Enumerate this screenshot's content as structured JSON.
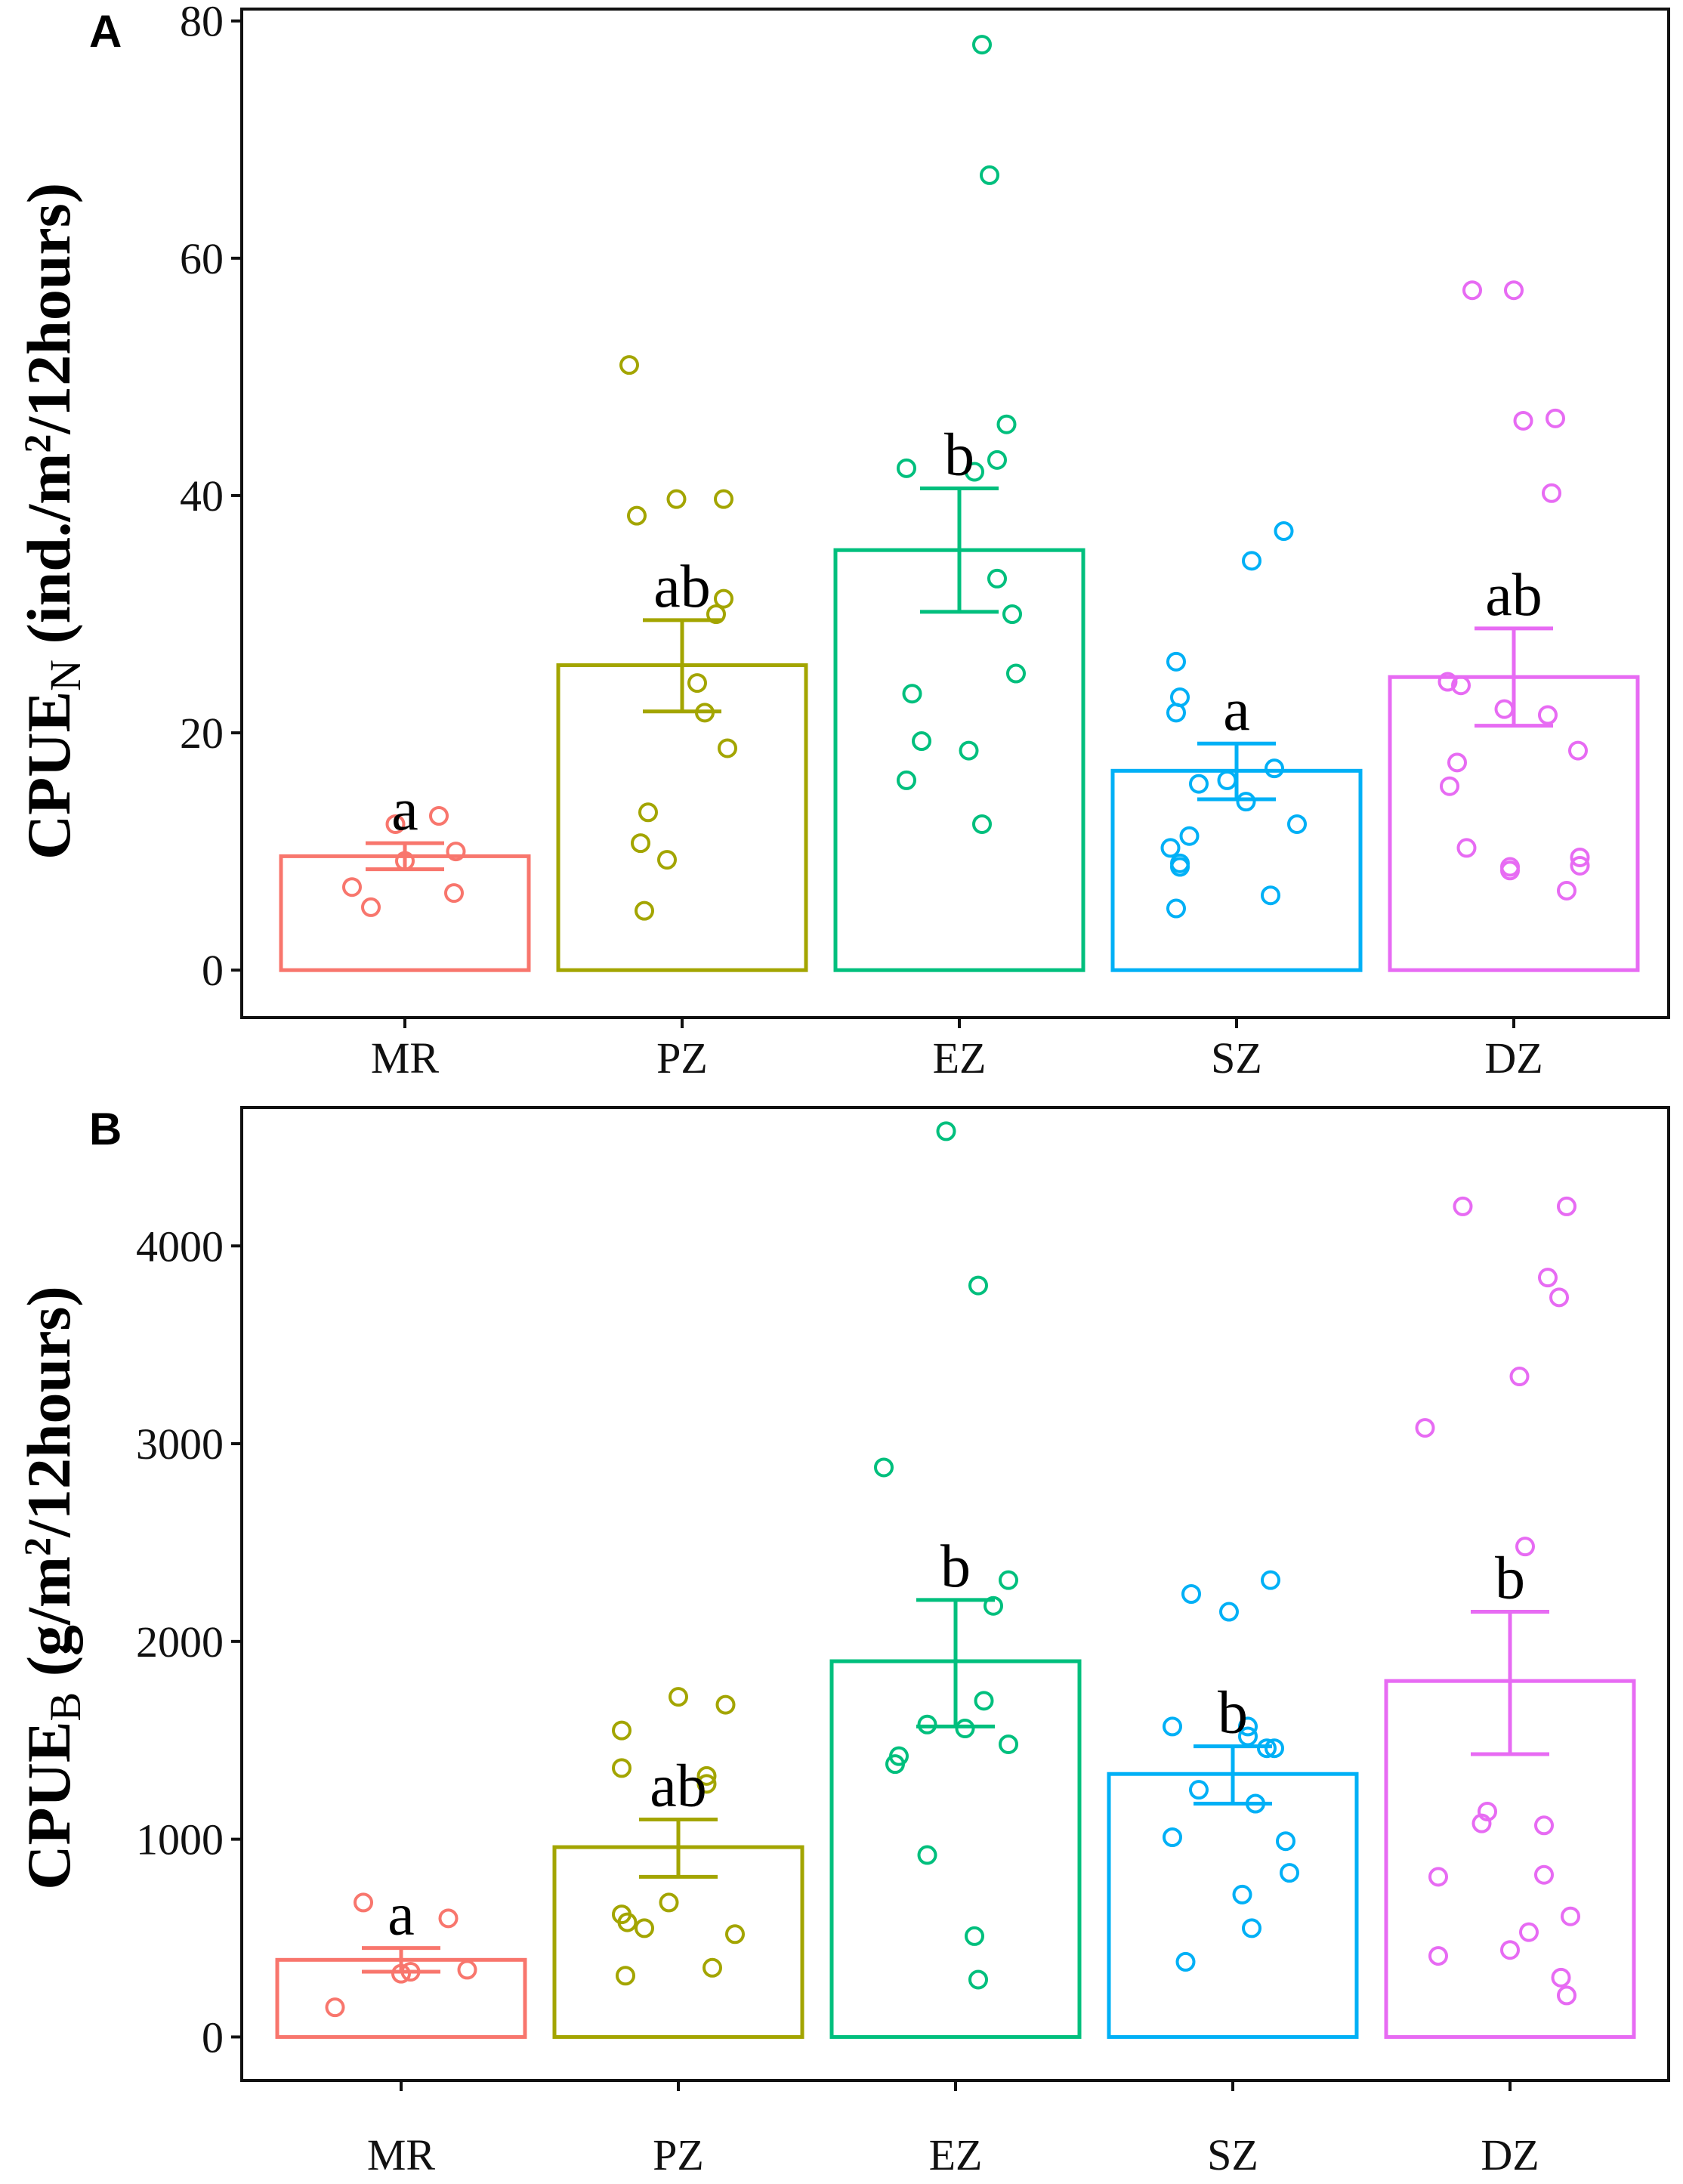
{
  "chart_data": [
    {
      "panel": "A",
      "type": "bar",
      "categories": [
        "MR",
        "PZ",
        "EZ",
        "SZ",
        "DZ"
      ],
      "colors": [
        "#F8766D",
        "#A3A500",
        "#00BF7D",
        "#00B0F6",
        "#E76BF3"
      ],
      "ylabel_main": "CPUE",
      "ylabel_sub": "N",
      "ylabel_tail": " (ind./m",
      "ylabel_sup": "2",
      "ylabel_end": "/12hours)",
      "ylim": [
        -4,
        81
      ],
      "yticks": [
        0,
        20,
        40,
        60,
        80
      ],
      "tick_labels": [
        "0",
        "20",
        "40",
        "60",
        "80"
      ],
      "means": [
        9.6,
        25.7,
        35.4,
        16.8,
        24.7
      ],
      "se_low": [
        8.5,
        21.8,
        30.2,
        14.4,
        20.6
      ],
      "se_high": [
        10.7,
        29.5,
        40.6,
        19.1,
        28.8
      ],
      "sig_letters": [
        "a",
        "ab",
        "b",
        "a",
        "ab"
      ],
      "points": [
        [
          [
            -0.28,
            7.0
          ],
          [
            -0.18,
            5.3
          ],
          [
            -0.05,
            12.3
          ],
          [
            0.0,
            9.2
          ],
          [
            0.18,
            13.0
          ],
          [
            0.27,
            10.0
          ],
          [
            0.26,
            6.5
          ]
        ],
        [
          [
            -0.28,
            51.0
          ],
          [
            -0.24,
            38.3
          ],
          [
            -0.03,
            39.7
          ],
          [
            0.22,
            39.7
          ],
          [
            0.22,
            31.3
          ],
          [
            0.18,
            30.0
          ],
          [
            0.08,
            24.2
          ],
          [
            0.12,
            21.7
          ],
          [
            0.24,
            18.7
          ],
          [
            -0.18,
            13.3
          ],
          [
            -0.22,
            10.7
          ],
          [
            -0.08,
            9.3
          ],
          [
            -0.2,
            5.0
          ]
        ],
        [
          [
            0.12,
            78.0
          ],
          [
            0.16,
            67.0
          ],
          [
            -0.28,
            42.3
          ],
          [
            0.08,
            42.0
          ],
          [
            0.25,
            46.0
          ],
          [
            0.2,
            43.0
          ],
          [
            0.2,
            33.0
          ],
          [
            0.28,
            30.0
          ],
          [
            0.3,
            25.0
          ],
          [
            -0.25,
            23.3
          ],
          [
            -0.2,
            19.3
          ],
          [
            0.05,
            18.5
          ],
          [
            -0.28,
            16.0
          ],
          [
            0.12,
            12.3
          ]
        ],
        [
          [
            0.25,
            37.0
          ],
          [
            0.08,
            34.5
          ],
          [
            -0.32,
            26.0
          ],
          [
            -0.3,
            23.0
          ],
          [
            -0.32,
            21.7
          ],
          [
            -0.05,
            16.0
          ],
          [
            0.05,
            14.2
          ],
          [
            0.2,
            17.0
          ],
          [
            -0.2,
            15.7
          ],
          [
            -0.35,
            10.3
          ],
          [
            -0.25,
            11.3
          ],
          [
            -0.3,
            9.0
          ],
          [
            -0.3,
            8.7
          ],
          [
            0.32,
            12.3
          ],
          [
            -0.32,
            5.2
          ],
          [
            0.18,
            6.3
          ]
        ],
        [
          [
            -0.22,
            57.3
          ],
          [
            0.0,
            57.3
          ],
          [
            0.05,
            46.3
          ],
          [
            0.22,
            46.5
          ],
          [
            0.2,
            40.2
          ],
          [
            -0.35,
            24.3
          ],
          [
            -0.28,
            24.0
          ],
          [
            -0.05,
            22.0
          ],
          [
            0.18,
            21.5
          ],
          [
            -0.3,
            17.5
          ],
          [
            -0.34,
            15.5
          ],
          [
            0.34,
            18.5
          ],
          [
            -0.25,
            10.3
          ],
          [
            -0.02,
            8.7
          ],
          [
            -0.02,
            8.4
          ],
          [
            0.35,
            9.5
          ],
          [
            0.35,
            8.8
          ],
          [
            0.28,
            6.7
          ]
        ]
      ]
    },
    {
      "panel": "B",
      "type": "bar",
      "categories": [
        "MR",
        "PZ",
        "EZ",
        "SZ",
        "DZ"
      ],
      "colors": [
        "#F8766D",
        "#A3A500",
        "#00BF7D",
        "#00B0F6",
        "#E76BF3"
      ],
      "ylabel_main": "CPUE",
      "ylabel_sub": "B",
      "ylabel_tail": " (g/m",
      "ylabel_sup": "2",
      "ylabel_end": "/12hours)",
      "ylim": [
        -220,
        4700
      ],
      "yticks": [
        0,
        1000,
        2000,
        3000,
        4000
      ],
      "tick_labels": [
        "0",
        "1000",
        "2000",
        "3000",
        "4000"
      ],
      "means": [
        390,
        960,
        1900,
        1330,
        1800
      ],
      "se_low": [
        330,
        810,
        1570,
        1180,
        1430
      ],
      "se_high": [
        450,
        1100,
        2210,
        1470,
        2150
      ],
      "sig_letters": [
        "a",
        "ab",
        "b",
        "b",
        "b"
      ],
      "points": [
        [
          [
            -0.2,
            680
          ],
          [
            0.25,
            600
          ],
          [
            0.05,
            330
          ],
          [
            0.0,
            320
          ],
          [
            0.35,
            340
          ],
          [
            -0.35,
            150
          ]
        ],
        [
          [
            -0.3,
            1550
          ],
          [
            -0.3,
            1360
          ],
          [
            0.0,
            1720
          ],
          [
            0.25,
            1680
          ],
          [
            0.15,
            1320
          ],
          [
            0.15,
            1280
          ],
          [
            -0.3,
            620
          ],
          [
            -0.27,
            580
          ],
          [
            -0.18,
            550
          ],
          [
            -0.05,
            680
          ],
          [
            0.3,
            520
          ],
          [
            0.18,
            350
          ],
          [
            -0.28,
            310
          ]
        ],
        [
          [
            -0.05,
            4580
          ],
          [
            0.12,
            3800
          ],
          [
            -0.38,
            2880
          ],
          [
            0.28,
            2310
          ],
          [
            0.2,
            2180
          ],
          [
            -0.15,
            1580
          ],
          [
            0.05,
            1560
          ],
          [
            0.15,
            1700
          ],
          [
            0.28,
            1480
          ],
          [
            -0.3,
            1420
          ],
          [
            -0.32,
            1380
          ],
          [
            -0.15,
            920
          ],
          [
            0.1,
            510
          ],
          [
            0.12,
            290
          ]
        ],
        [
          [
            -0.22,
            2240
          ],
          [
            -0.02,
            2150
          ],
          [
            0.2,
            2310
          ],
          [
            -0.32,
            1570
          ],
          [
            0.08,
            1570
          ],
          [
            0.08,
            1520
          ],
          [
            0.18,
            1460
          ],
          [
            0.22,
            1460
          ],
          [
            -0.18,
            1250
          ],
          [
            0.12,
            1180
          ],
          [
            -0.32,
            1010
          ],
          [
            0.28,
            990
          ],
          [
            0.3,
            830
          ],
          [
            0.05,
            720
          ],
          [
            0.1,
            550
          ],
          [
            -0.25,
            380
          ]
        ],
        [
          [
            -0.25,
            4200
          ],
          [
            0.3,
            4200
          ],
          [
            0.2,
            3840
          ],
          [
            0.26,
            3740
          ],
          [
            0.05,
            3340
          ],
          [
            -0.45,
            3080
          ],
          [
            0.08,
            2480
          ],
          [
            -0.12,
            1140
          ],
          [
            -0.15,
            1080
          ],
          [
            0.18,
            1070
          ],
          [
            0.18,
            820
          ],
          [
            -0.38,
            810
          ],
          [
            0.32,
            610
          ],
          [
            0.0,
            440
          ],
          [
            0.1,
            530
          ],
          [
            -0.38,
            410
          ],
          [
            0.27,
            300
          ],
          [
            0.3,
            210
          ]
        ]
      ]
    }
  ]
}
